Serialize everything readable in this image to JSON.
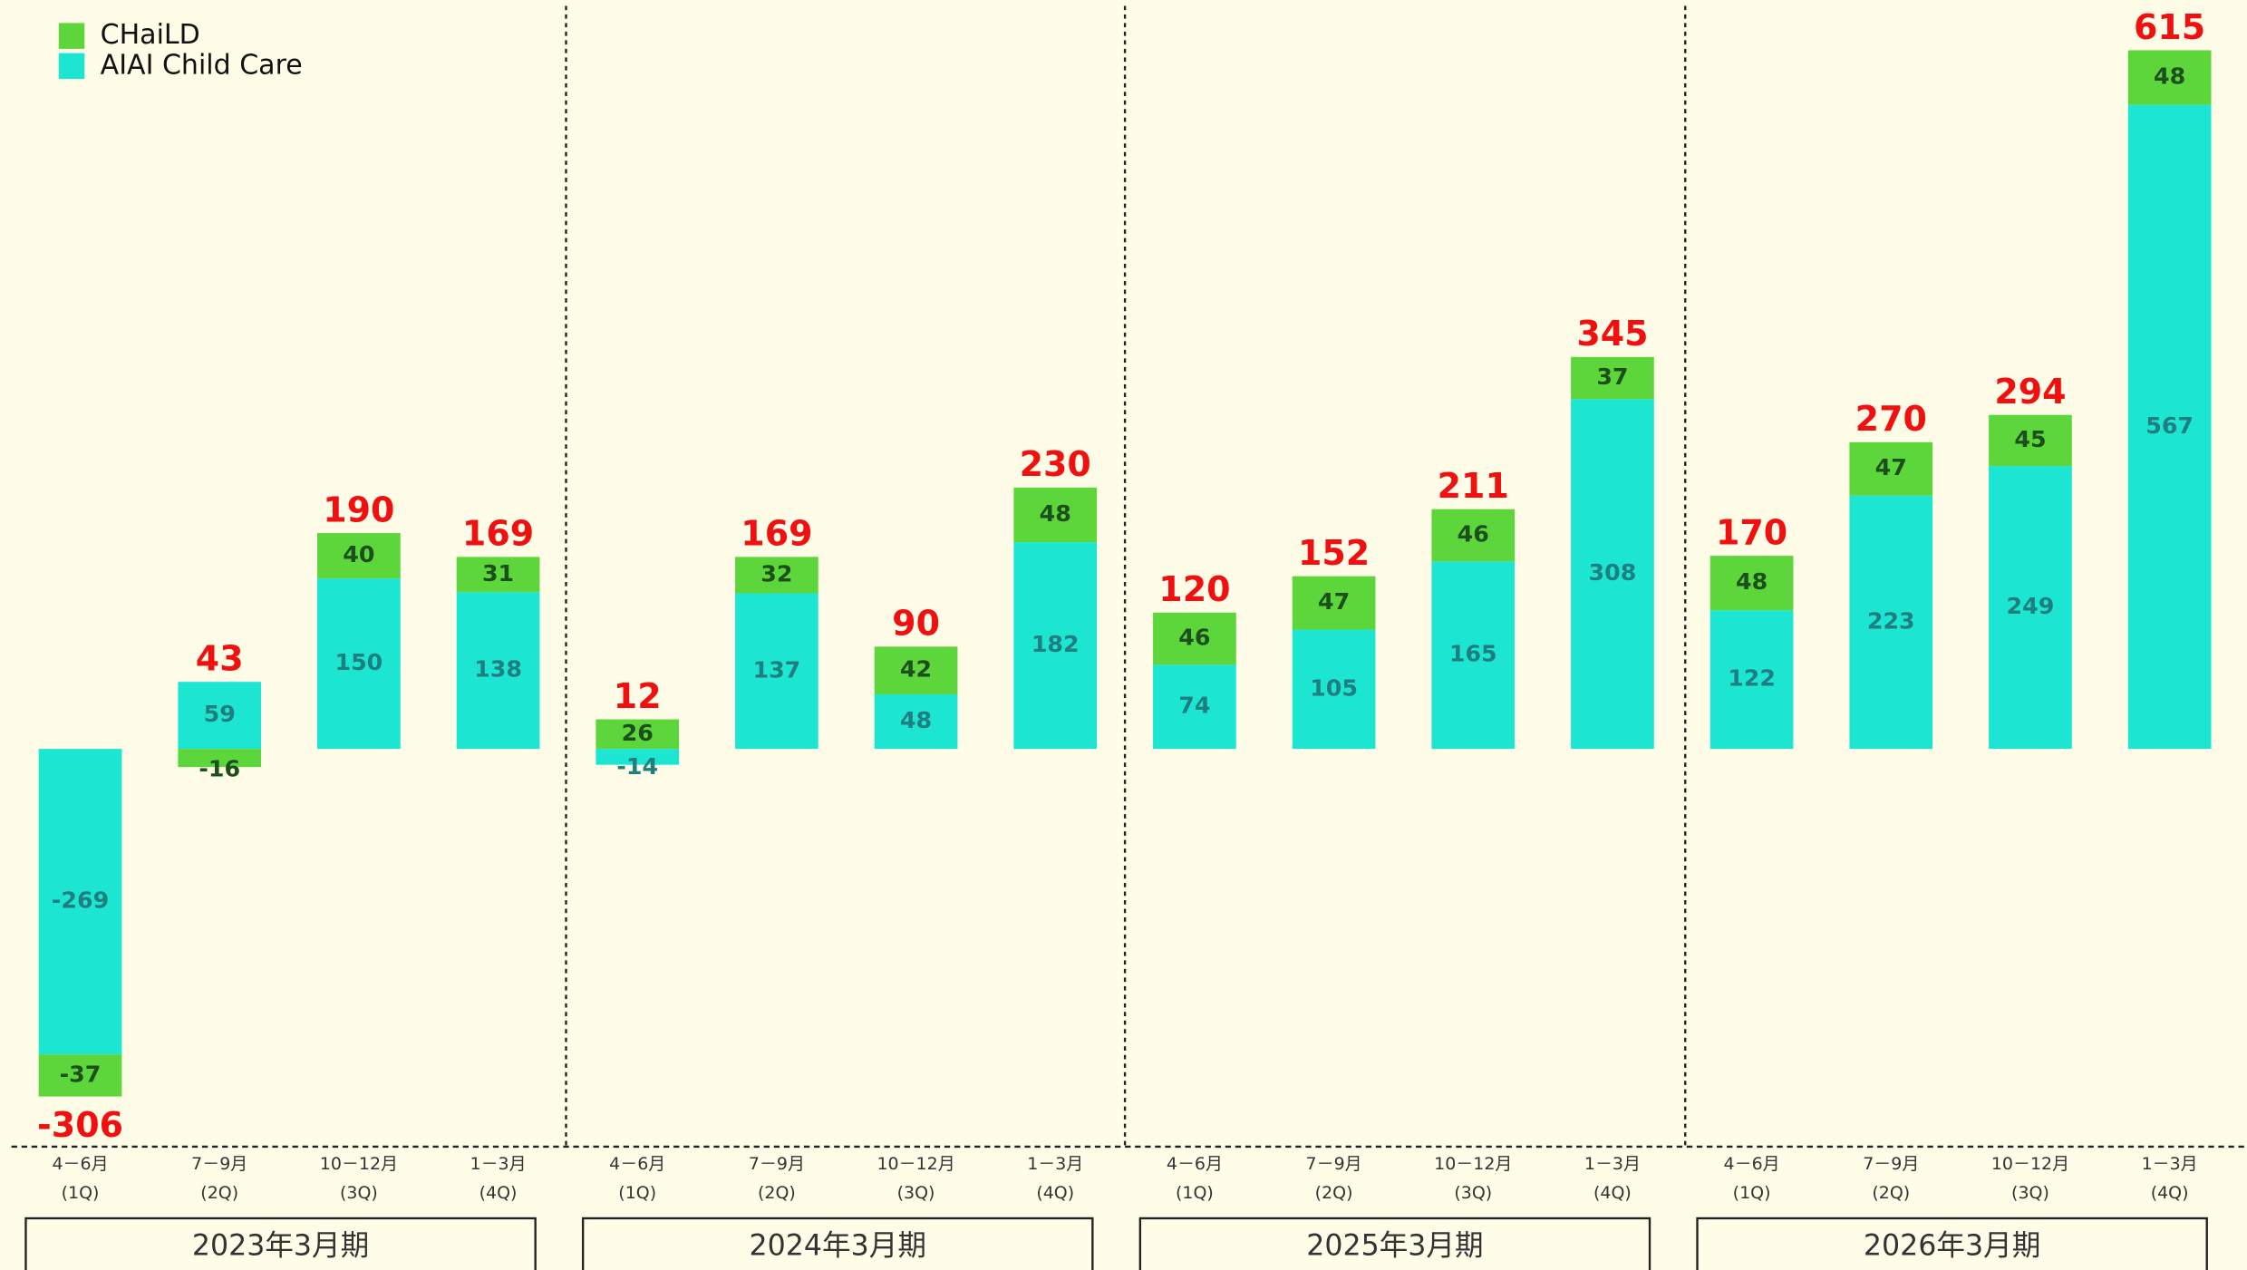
{
  "chart_data": {
    "type": "stacked_bar",
    "categories": [
      "4－6月",
      "7－9月",
      "10－12月",
      "1－3月",
      "4－6月",
      "7－9月",
      "10－12月",
      "1－3月",
      "4－6月",
      "7－9月",
      "10－12月",
      "1－3月",
      "4－6月",
      "7－9月",
      "10－12月",
      "1－3月"
    ],
    "quarter_labels": [
      "(1Q)",
      "(2Q)",
      "(3Q)",
      "(4Q)",
      "(1Q)",
      "(2Q)",
      "(3Q)",
      "(4Q)",
      "(1Q)",
      "(2Q)",
      "(3Q)",
      "(4Q)",
      "(1Q)",
      "(2Q)",
      "(3Q)",
      "(4Q)"
    ],
    "groups": [
      "2023年3月期",
      "2024年3月期",
      "2025年3月期",
      "2026年3月期"
    ],
    "series": [
      {
        "name": "AIAI Child Care",
        "color": "#1ce6d2",
        "label_color": "#1f7f80",
        "values": [
          -269,
          59,
          150,
          138,
          -14,
          137,
          48,
          182,
          74,
          105,
          165,
          308,
          122,
          223,
          249,
          567
        ]
      },
      {
        "name": "CHaiLD",
        "color": "#5dd63b",
        "label_color": "#1c4f1c",
        "values": [
          -37,
          -16,
          40,
          31,
          26,
          32,
          42,
          48,
          46,
          47,
          46,
          37,
          48,
          47,
          45,
          48
        ]
      }
    ],
    "totals": [
      -306,
      43,
      190,
      169,
      12,
      169,
      90,
      230,
      120,
      152,
      211,
      345,
      170,
      270,
      294,
      615
    ],
    "legend": "upper left"
  }
}
